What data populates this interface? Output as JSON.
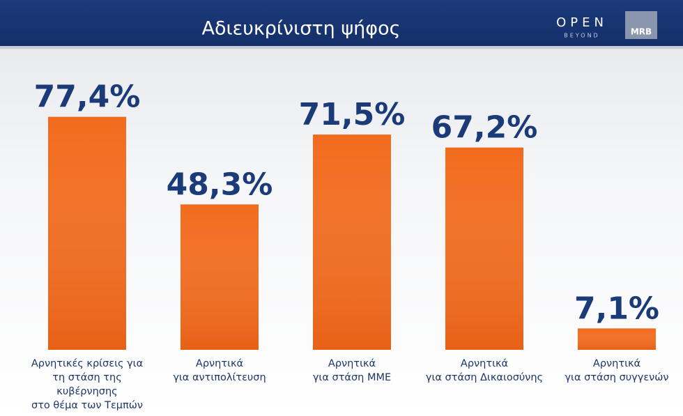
{
  "chart_data": {
    "type": "bar",
    "title": "Αδιευκρίνιστη ψήφος",
    "categories": [
      "Αρνητικές κρίσεις για\nτη στάση της κυβέρνησης\nστο θέμα των Τεμπών",
      "Αρνητικά\nγια αντιπολίτευση",
      "Αρνητικά\nγια στάση ΜΜΕ",
      "Αρνητικά\nγια στάση Δικαιοσύνης",
      "Αρνητικά\nγια στάση συγγενών"
    ],
    "values": [
      77.4,
      48.3,
      71.5,
      67.2,
      7.1
    ],
    "value_labels": [
      "77,4%",
      "48,3%",
      "71,5%",
      "67,2%",
      "7,1%"
    ],
    "color": "#f26b1d",
    "ylim": [
      0,
      100
    ]
  },
  "branding": {
    "channel": "OPEN",
    "channel_tagline": "BEYOND",
    "pollster": "MRB"
  }
}
